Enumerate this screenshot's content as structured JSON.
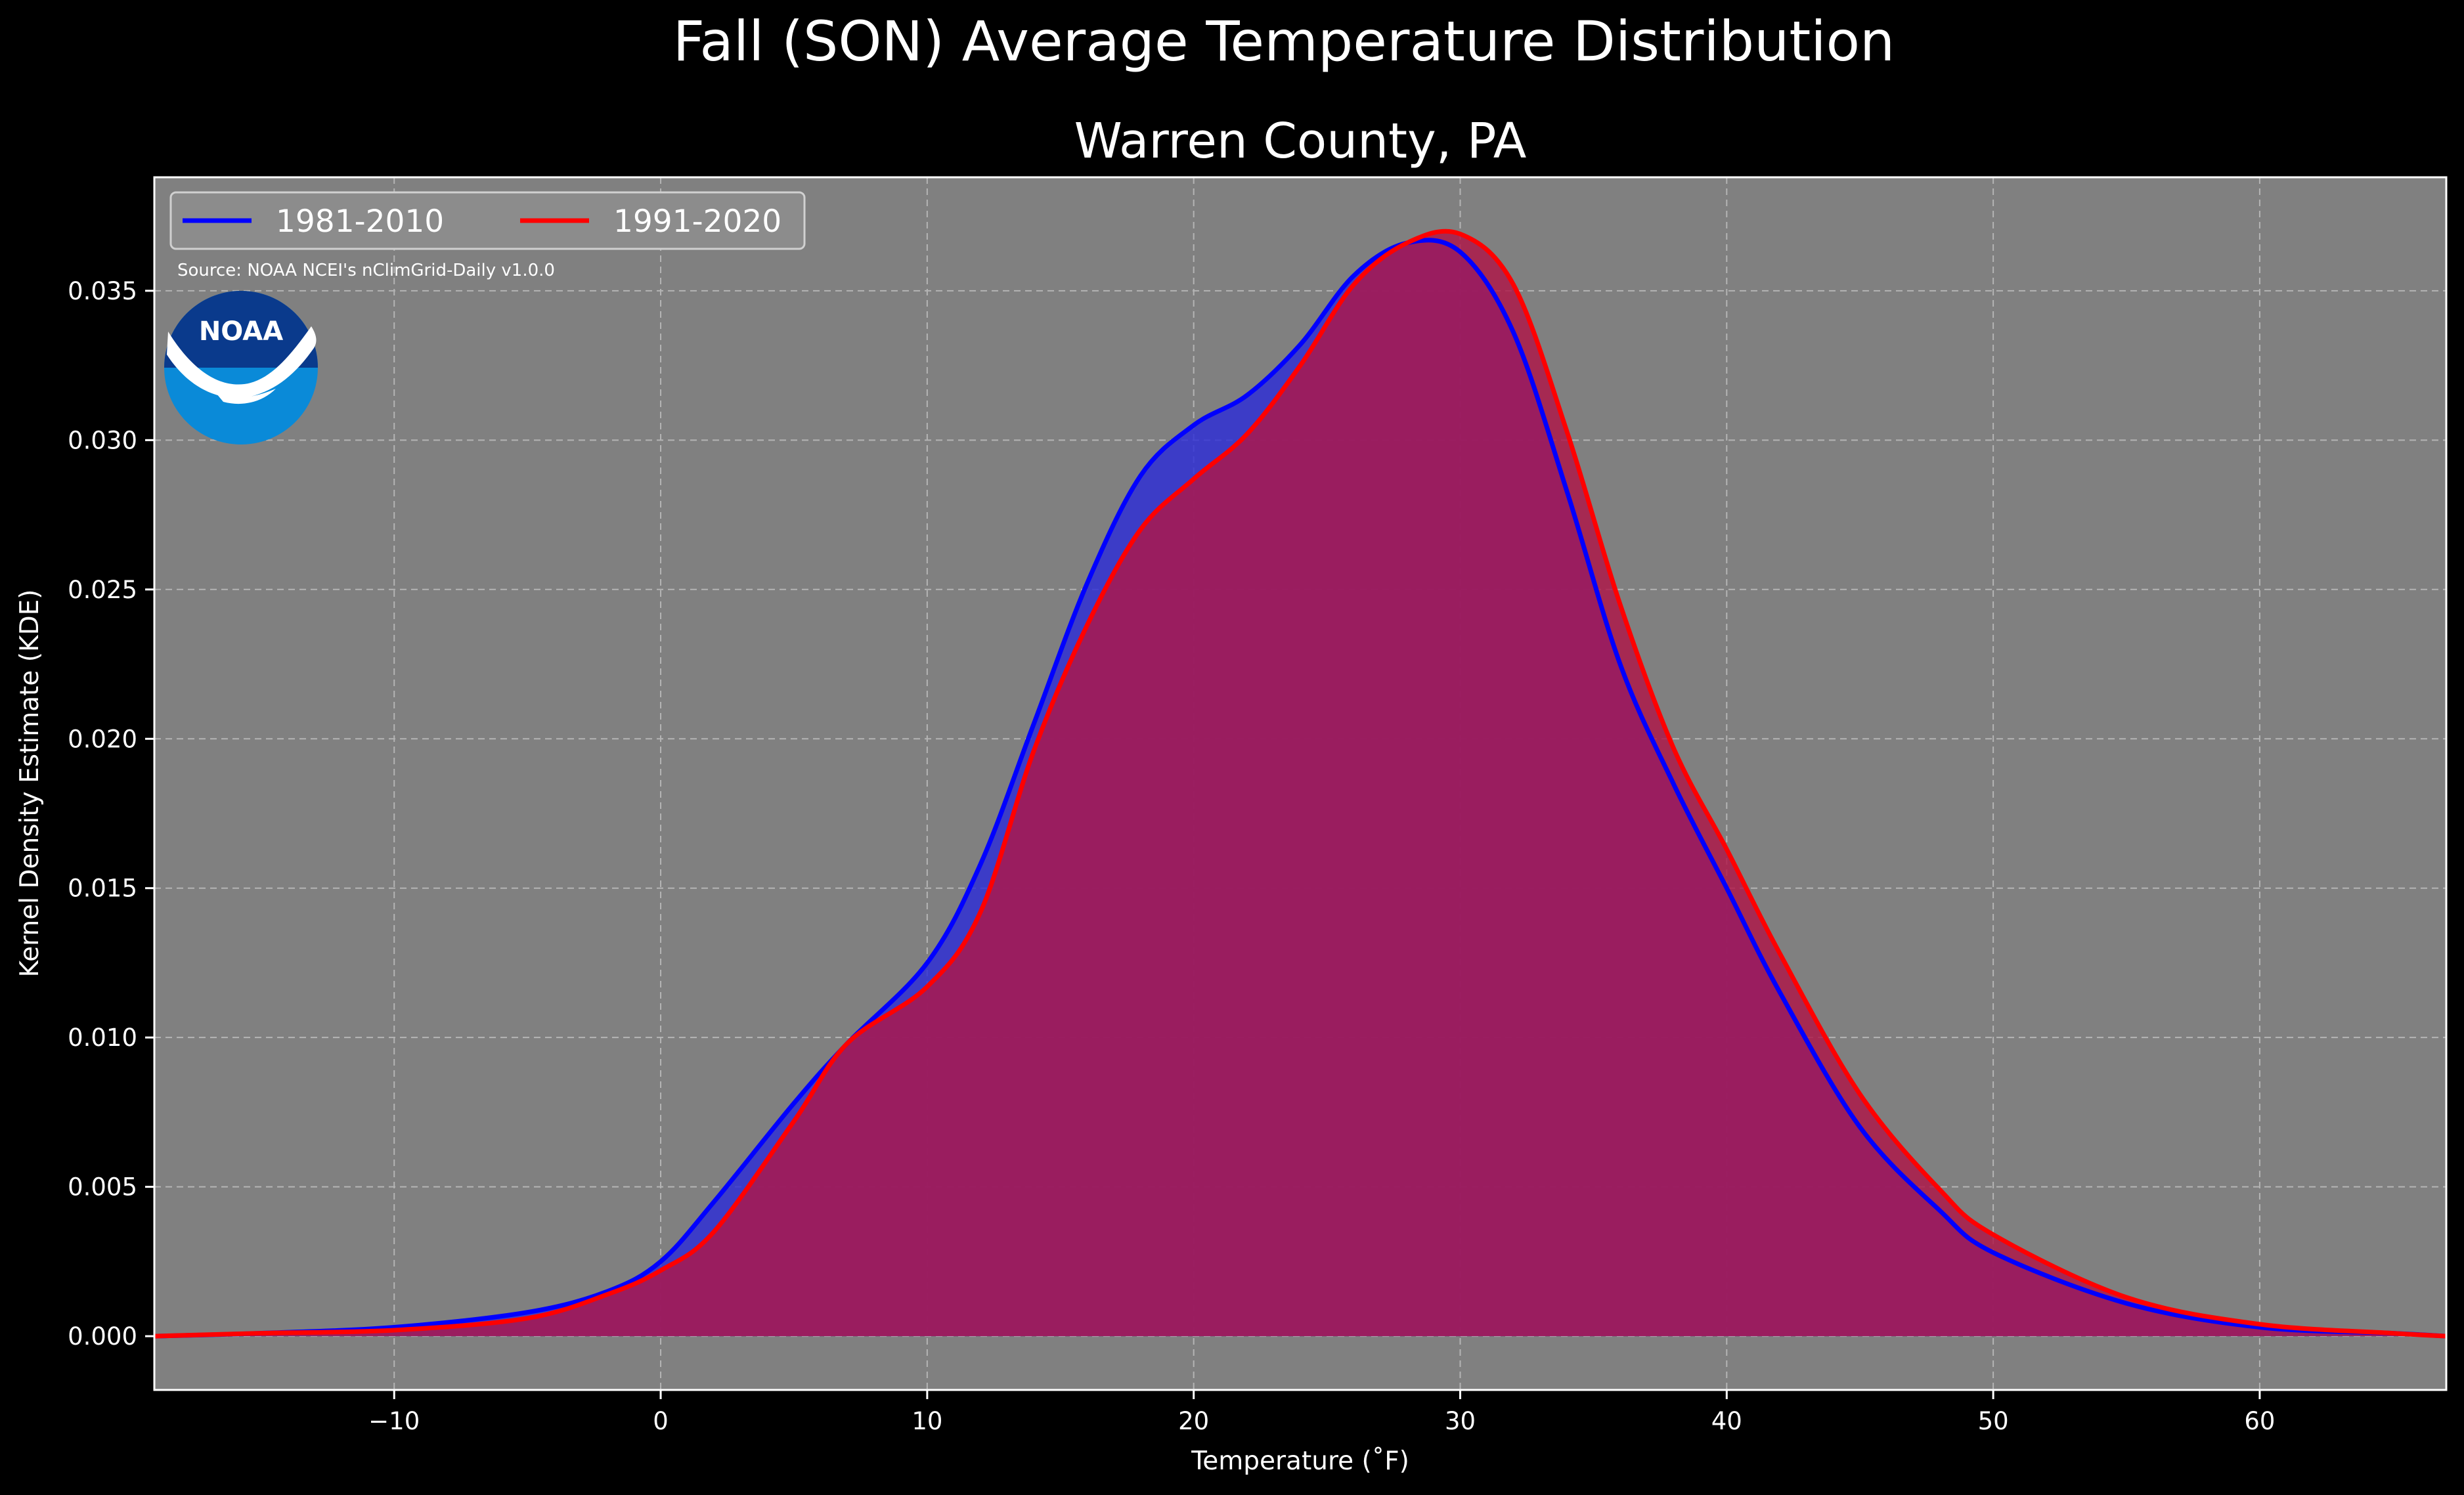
{
  "chart_data": {
    "type": "area",
    "suptitle": "Fall (SON) Average Temperature Distribution",
    "title": "Warren County, PA",
    "xlabel": "Temperature (˚F)",
    "ylabel": "Kernel Density Estimate (KDE)",
    "xlim": [
      -19,
      67
    ],
    "ylim": [
      -0.0018,
      0.0388
    ],
    "x_ticks": [
      -10,
      0,
      10,
      20,
      30,
      40,
      50,
      60
    ],
    "x_tick_labels": [
      "−10",
      "0",
      "10",
      "20",
      "30",
      "40",
      "50",
      "60"
    ],
    "y_ticks": [
      0.0,
      0.005,
      0.01,
      0.015,
      0.02,
      0.025,
      0.03,
      0.035
    ],
    "y_tick_labels": [
      "0.000",
      "0.005",
      "0.010",
      "0.015",
      "0.020",
      "0.025",
      "0.030",
      "0.035"
    ],
    "grid": true,
    "legend_position": "top-left",
    "source_note": "Source: NOAA NCEI's nClimGrid-Daily v1.0.0",
    "logo_text": "NOAA",
    "background_color": "#000000",
    "axes_facecolor": "#808080",
    "series": [
      {
        "name": "1981-2010",
        "color": "#0000ff",
        "fill": "rgba(45,45,215,0.82)",
        "x": [
          -19,
          -15,
          -10,
          -5,
          -2,
          0,
          2,
          5,
          7,
          10,
          12,
          14,
          16,
          18,
          20,
          22,
          24,
          26,
          28,
          30,
          32,
          34,
          36,
          38,
          40,
          42,
          45,
          48,
          50,
          55,
          60,
          65,
          67
        ],
        "y": [
          0.0,
          0.0001,
          0.0003,
          0.0008,
          0.0015,
          0.0025,
          0.0045,
          0.0078,
          0.0098,
          0.0125,
          0.0158,
          0.0205,
          0.0252,
          0.0288,
          0.0305,
          0.0315,
          0.0332,
          0.0355,
          0.0366,
          0.0363,
          0.0336,
          0.0283,
          0.0225,
          0.0185,
          0.015,
          0.0115,
          0.007,
          0.0042,
          0.0028,
          0.0011,
          0.0003,
          0.0001,
          0.0
        ]
      },
      {
        "name": "1991-2020",
        "color": "#ff0000",
        "fill": "rgba(175,22,72,0.82)",
        "x": [
          -19,
          -15,
          -10,
          -5,
          -2,
          0,
          2,
          5,
          7,
          10,
          12,
          14,
          16,
          18,
          20,
          22,
          24,
          26,
          28,
          30,
          32,
          34,
          36,
          38,
          40,
          42,
          45,
          48,
          50,
          55,
          60,
          65,
          67
        ],
        "y": [
          0.0,
          0.0001,
          0.0002,
          0.0006,
          0.0014,
          0.0022,
          0.0035,
          0.0072,
          0.0098,
          0.0117,
          0.0142,
          0.0196,
          0.0238,
          0.027,
          0.0287,
          0.0302,
          0.0325,
          0.0352,
          0.0366,
          0.0369,
          0.0352,
          0.0303,
          0.0245,
          0.0197,
          0.0163,
          0.0128,
          0.0081,
          0.0049,
          0.0034,
          0.0013,
          0.0004,
          0.0001,
          0.0
        ]
      }
    ]
  }
}
